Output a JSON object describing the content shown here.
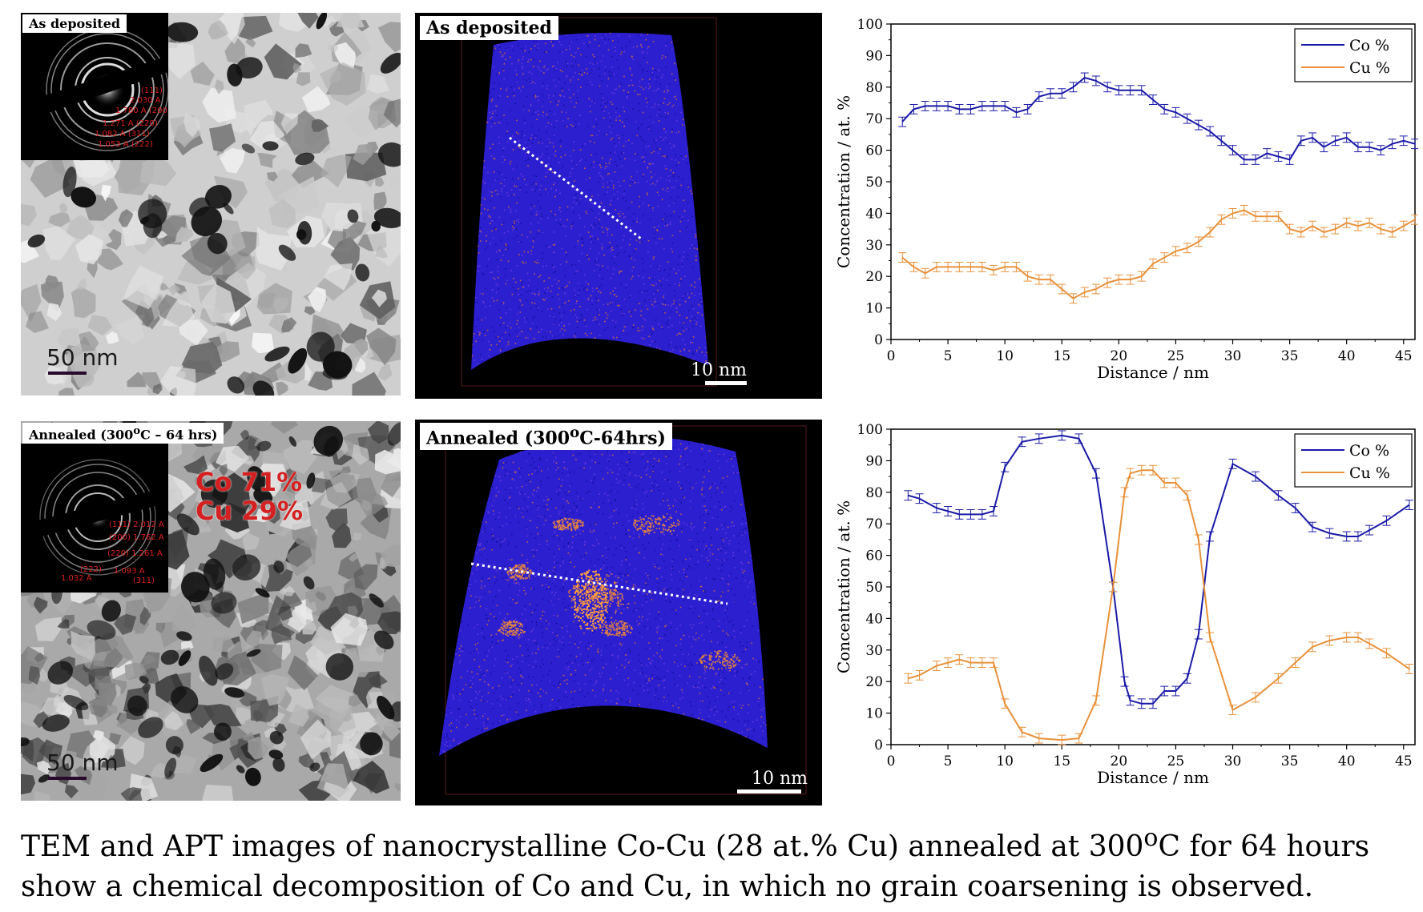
{
  "panels": {
    "tem_top": {
      "label": "As deposited",
      "scale": "50 nm"
    },
    "apt_top": {
      "label": "As deposited",
      "scale": "10 nm"
    },
    "tem_bottom": {
      "label_html": "Annealed (300<sup>o</sup>C – 64 hrs)",
      "scale": "50 nm",
      "composition": [
        "Co 71%",
        "Cu 29%"
      ]
    },
    "apt_bottom": {
      "label_html": "Annealed (300<sup>o</sup>C-64hrs)",
      "scale": "10 nm"
    }
  },
  "saed_top": [
    "(111)",
    "2.030 A",
    "1.780 A (200)",
    "1.271 A (220)",
    "1.082 A (311)",
    "1.053 A (222)"
  ],
  "saed_bottom": [
    "(111) 2.012 A",
    "(200) 1.762 A",
    "(220) 1.261 A",
    "(222)",
    "1.032 A",
    "1.093 A",
    "(311)"
  ],
  "caption_html": "TEM and APT images of nanocrystalline Co-Cu (28 at.% Cu) annealed at 300<sup>o</sup>C for 64 hours show a chemical decomposition of Co and Cu, in which no grain coarsening is observed.",
  "colors": {
    "co": "#1a1aa8",
    "cu": "#e8913a"
  },
  "chart_data": [
    {
      "type": "line",
      "xlabel": "Distance / nm",
      "ylabel": "Concentration / at. %",
      "xlim": [
        0,
        46
      ],
      "ylim": [
        0,
        100
      ],
      "xticks": [
        0,
        5,
        10,
        15,
        20,
        25,
        30,
        35,
        40,
        45
      ],
      "yticks": [
        0,
        10,
        20,
        30,
        40,
        50,
        60,
        70,
        80,
        90,
        100
      ],
      "legend": "top-right",
      "x": [
        1,
        2,
        3,
        4,
        5,
        6,
        7,
        8,
        9,
        10,
        11,
        12,
        13,
        14,
        15,
        16,
        17,
        18,
        19,
        20,
        21,
        22,
        23,
        24,
        25,
        26,
        27,
        28,
        29,
        30,
        31,
        32,
        33,
        34,
        35,
        36,
        37,
        38,
        39,
        40,
        41,
        42,
        43,
        44,
        45,
        46
      ],
      "series": [
        {
          "name": "Co %",
          "values": [
            69,
            73,
            74,
            74,
            74,
            73,
            73,
            74,
            74,
            74,
            72,
            73,
            77,
            78,
            78,
            80,
            83,
            82,
            80,
            79,
            79,
            79,
            76,
            73,
            72,
            70,
            68,
            66,
            63,
            60,
            57,
            57,
            59,
            58,
            57,
            63,
            64,
            61,
            63,
            64,
            61,
            61,
            60,
            62,
            63,
            62
          ]
        },
        {
          "name": "Cu %",
          "values": [
            26,
            23,
            21,
            23,
            23,
            23,
            23,
            23,
            22,
            23,
            23,
            20,
            19,
            19,
            16,
            13,
            15,
            16,
            18,
            19,
            19,
            20,
            24,
            26,
            28,
            29,
            31,
            34,
            38,
            40,
            41,
            39,
            39,
            39,
            35,
            34,
            36,
            34,
            35,
            37,
            36,
            37,
            35,
            34,
            36,
            38
          ]
        }
      ]
    },
    {
      "type": "line",
      "xlabel": "Distance / nm",
      "ylabel": "Concentration / at. %",
      "xlim": [
        0,
        46
      ],
      "ylim": [
        0,
        100
      ],
      "xticks": [
        0,
        5,
        10,
        15,
        20,
        25,
        30,
        35,
        40,
        45
      ],
      "yticks": [
        0,
        10,
        20,
        30,
        40,
        50,
        60,
        70,
        80,
        90,
        100
      ],
      "legend": "top-right",
      "x": [
        1.5,
        2.5,
        4,
        5,
        6,
        7,
        8,
        9,
        10,
        11.5,
        13,
        15,
        16.5,
        18,
        19.5,
        20.5,
        21,
        22,
        23,
        24,
        25,
        26,
        27,
        28,
        30,
        32,
        34,
        35.5,
        37,
        38.5,
        40,
        41,
        42,
        43.5,
        45.5
      ],
      "series": [
        {
          "name": "Co %",
          "values": [
            79,
            78,
            75,
            74,
            73,
            73,
            73,
            74,
            88,
            96,
            97,
            98,
            97,
            86,
            50,
            20,
            14,
            13,
            13,
            17,
            17,
            21,
            35,
            66,
            89,
            85,
            79,
            75,
            69,
            67,
            66,
            66,
            68,
            71,
            76
          ]
        },
        {
          "name": "Cu %",
          "values": [
            21,
            22,
            25,
            26,
            27,
            26,
            26,
            26,
            13,
            4,
            2,
            1.5,
            2,
            14,
            50,
            80,
            86,
            87,
            87,
            83,
            83,
            79,
            65,
            34,
            11,
            15,
            21,
            26,
            31,
            33,
            34,
            34,
            32,
            29,
            24
          ]
        }
      ]
    }
  ]
}
